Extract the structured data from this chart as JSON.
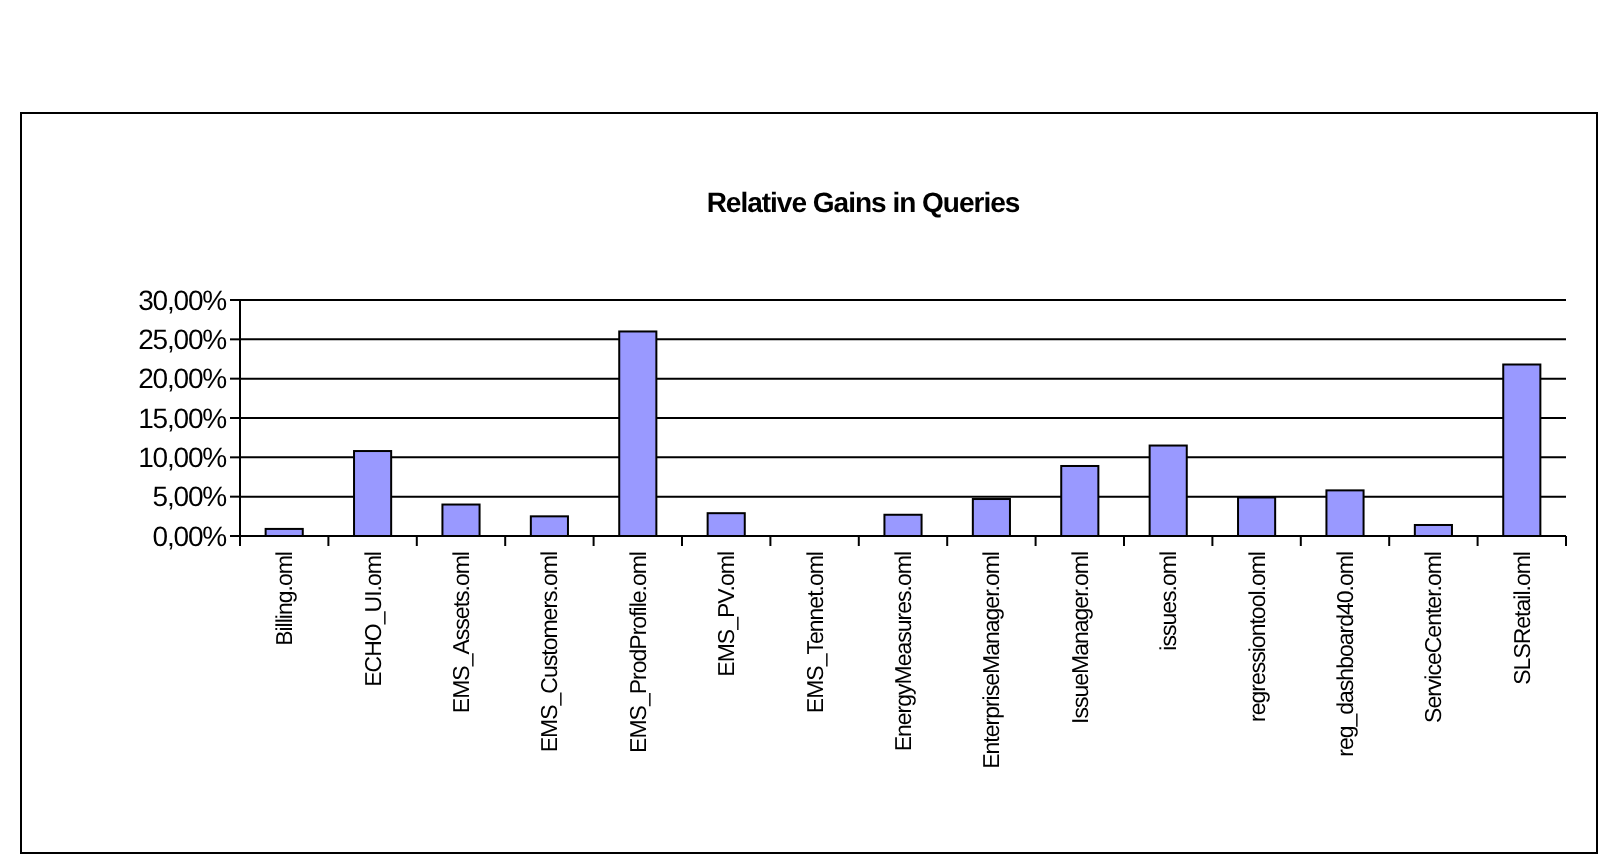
{
  "chart_data": {
    "type": "bar",
    "title": "Relative Gains in Queries",
    "categories": [
      "Billing.oml",
      "ECHO_UI.oml",
      "EMS_Assets.oml",
      "EMS_Customers.oml",
      "EMS_ProdProfile.oml",
      "EMS_PV.oml",
      "EMS_Tennet.oml",
      "EnergyMeasures.oml",
      "EnterpriseManager.oml",
      "IssueManager.oml",
      "issues.oml",
      "regressiontool.oml",
      "reg_dashboard40.oml",
      "ServiceCenter.oml",
      "SLSRetail.oml"
    ],
    "values": [
      0.9,
      10.8,
      4.0,
      2.5,
      26.0,
      2.9,
      0,
      2.7,
      4.7,
      8.9,
      11.5,
      4.9,
      5.8,
      1.4,
      21.8
    ],
    "color": "#9999ff",
    "ylim": [
      0,
      30
    ],
    "yticks": [
      {
        "value": 0,
        "label": "0,00%"
      },
      {
        "value": 5,
        "label": "5,00%"
      },
      {
        "value": 10,
        "label": "10,00%"
      },
      {
        "value": 15,
        "label": "15,00%"
      },
      {
        "value": 20,
        "label": "20,00%"
      },
      {
        "value": 25,
        "label": "25,00%"
      },
      {
        "value": 30,
        "label": "30,00%"
      }
    ],
    "grid": "y"
  }
}
